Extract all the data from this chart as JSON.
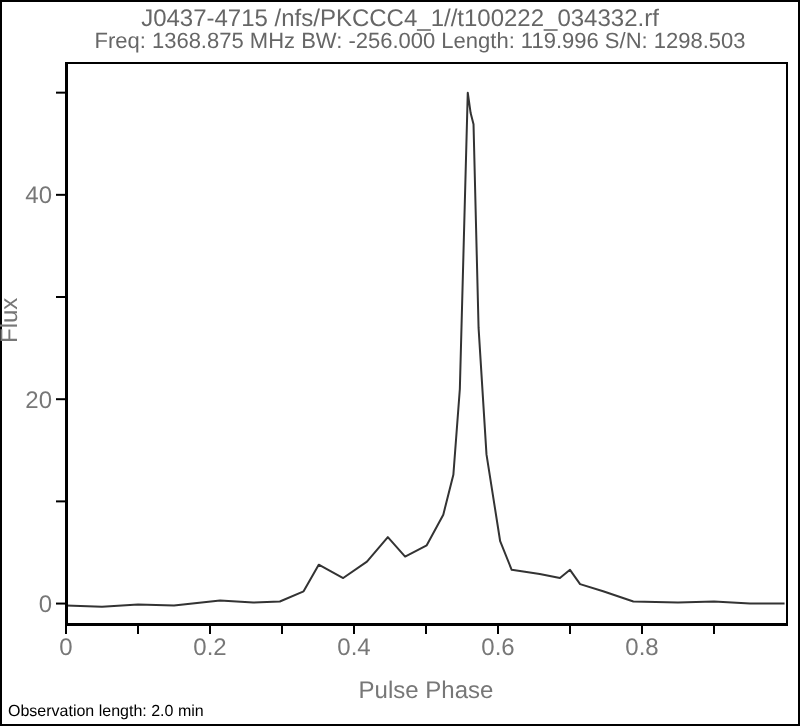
{
  "chart_data": {
    "type": "line",
    "title": "J0437-4715 /nfs/PKCCC4_1//t100222_034332.rf",
    "subtitle": "Freq: 1368.875 MHz BW: -256.000 Length: 119.996 S/N: 1298.503",
    "xlabel": "Pulse Phase",
    "ylabel": "Flux",
    "annotations": [
      "Observation length: 2.0 min"
    ],
    "series": [
      {
        "color": "#333333",
        "x": [
          0.0,
          0.05,
          0.1,
          0.15,
          0.214,
          0.26,
          0.297,
          0.33,
          0.351,
          0.385,
          0.418,
          0.447,
          0.471,
          0.501,
          0.524,
          0.538,
          0.547,
          0.558,
          0.562,
          0.566,
          0.573,
          0.584,
          0.603,
          0.619,
          0.658,
          0.686,
          0.7,
          0.714,
          0.746,
          0.788,
          0.85,
          0.9,
          0.95,
          0.998
        ],
        "values": [
          -0.2,
          -0.3,
          -0.1,
          -0.2,
          0.3,
          0.1,
          0.2,
          1.2,
          3.8,
          2.5,
          4.1,
          6.5,
          4.6,
          5.7,
          8.7,
          12.6,
          21,
          50,
          48,
          46.9,
          27,
          14.6,
          6.1,
          3.3,
          2.9,
          2.5,
          3.3,
          1.9,
          1.2,
          0.2,
          0.1,
          0.2,
          0,
          0
        ]
      }
    ],
    "xlim": [
      0,
      1
    ],
    "xticks": [
      0,
      {
        "value": 0.1,
        "label": null
      },
      0.2,
      {
        "value": 0.3,
        "label": null
      },
      0.4,
      {
        "value": 0.5,
        "label": null
      },
      0.6,
      {
        "value": 0.7,
        "label": null
      },
      0.8,
      {
        "value": 0.9,
        "label": null
      }
    ],
    "ylim": [
      -2,
      53
    ],
    "yticks": [
      0,
      {
        "value": 10,
        "label": null
      },
      20,
      {
        "value": 30,
        "label": null
      },
      40,
      {
        "value": 50,
        "label": null
      }
    ],
    "grid": false,
    "legend": false,
    "marker": "none",
    "line_style": "solid"
  }
}
